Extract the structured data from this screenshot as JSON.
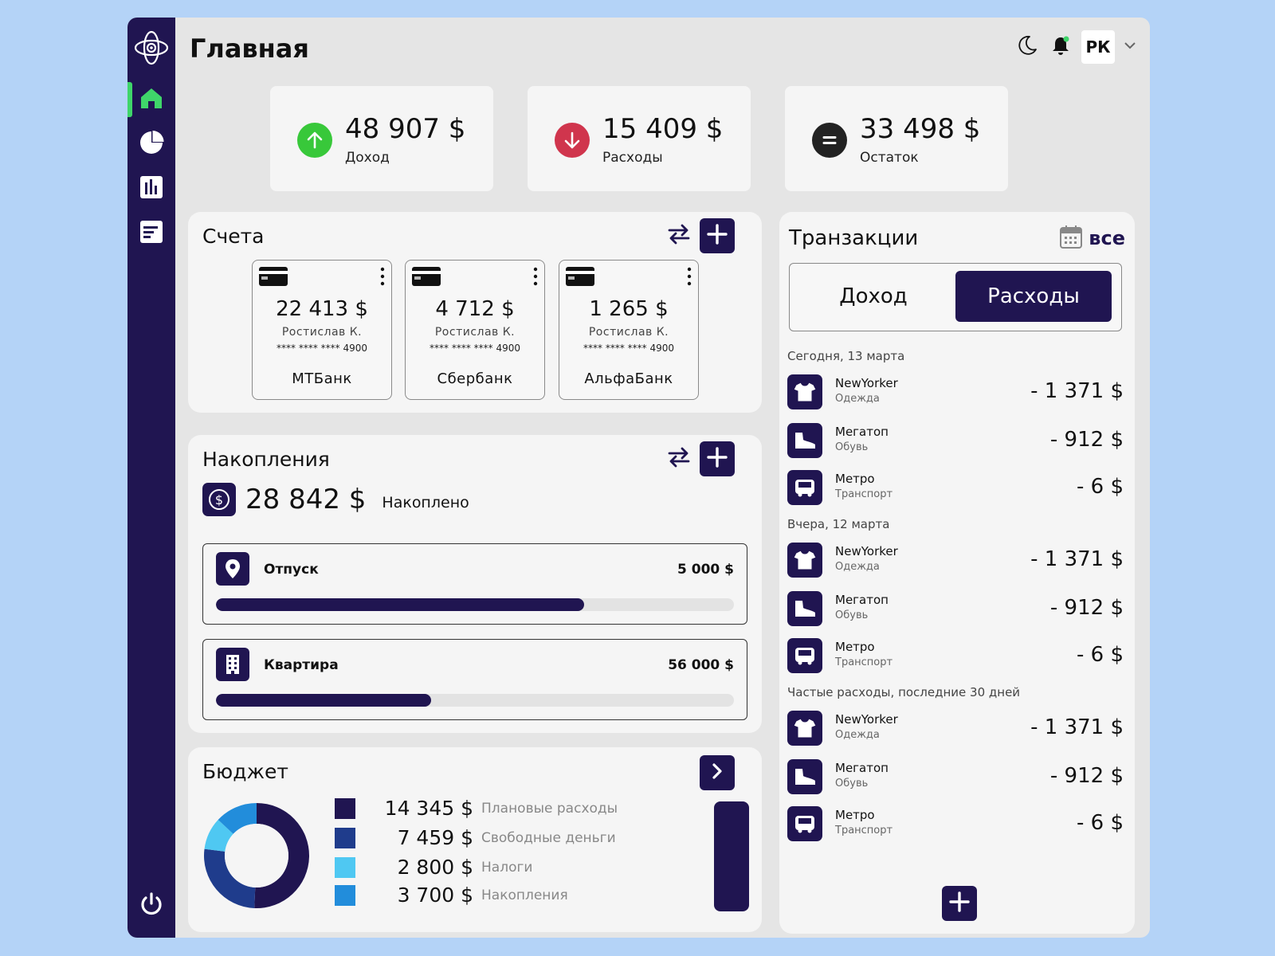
{
  "header": {
    "title": "Главная",
    "avatar_initials": "РК"
  },
  "stats": [
    {
      "value": "48 907 $",
      "label": "Доход",
      "color": "#38c83a"
    },
    {
      "value": "15 409 $",
      "label": "Расходы",
      "color": "#d0354d"
    },
    {
      "value": "33 498 $",
      "label": "Остаток",
      "color": "#222222"
    }
  ],
  "accounts": {
    "title": "Счета",
    "items": [
      {
        "amount": "22 413 $",
        "owner": "Ростислав К.",
        "number": "**** **** **** 4900",
        "bank": "МТБанк"
      },
      {
        "amount": "4 712 $",
        "owner": "Ростислав К.",
        "number": "**** **** **** 4900",
        "bank": "Сбербанк"
      },
      {
        "amount": "1 265 $",
        "owner": "Ростислав К.",
        "number": "**** **** **** 4900",
        "bank": "АльфаБанк"
      }
    ]
  },
  "savings": {
    "title": "Накопления",
    "total": "28 842 $",
    "total_label": "Накоплено",
    "goals": [
      {
        "name": "Отпуск",
        "target": "5 000 $",
        "progress": 0.71
      },
      {
        "name": "Квартира",
        "target": "56 000 $",
        "progress": 0.415
      }
    ]
  },
  "budget": {
    "title": "Бюджет",
    "items": [
      {
        "value": "14 345 $",
        "label": "Плановые расходы",
        "color": "#201551",
        "amount": 14345
      },
      {
        "value": "7 459 $",
        "label": "Свободные деньги",
        "color": "#1f3c8c",
        "amount": 7459
      },
      {
        "value": "2 800 $",
        "label": "Налоги",
        "color": "#4fc8f2",
        "amount": 2800
      },
      {
        "value": "3 700 $",
        "label": "Накопления",
        "color": "#228ddb",
        "amount": 3700
      }
    ]
  },
  "transactions": {
    "title": "Транзакции",
    "filter_label": "все",
    "tab_income": "Доход",
    "tab_expenses": "Расходы",
    "sections": [
      {
        "label": "Сегодня, 13 марта",
        "items": [
          {
            "name": "NewYorker",
            "category": "Одежда",
            "amount": "- 1 371 $",
            "icon": "tshirt-icon"
          },
          {
            "name": "Мегатоп",
            "category": "Обувь",
            "amount": "- 912 $",
            "icon": "shoe-icon"
          },
          {
            "name": "Метро",
            "category": "Транспорт",
            "amount": "- 6 $",
            "icon": "bus-icon"
          }
        ]
      },
      {
        "label": "Вчера, 12 марта",
        "items": [
          {
            "name": "NewYorker",
            "category": "Одежда",
            "amount": "- 1 371 $",
            "icon": "tshirt-icon"
          },
          {
            "name": "Мегатоп",
            "category": "Обувь",
            "amount": "- 912 $",
            "icon": "shoe-icon"
          },
          {
            "name": "Метро",
            "category": "Транспорт",
            "amount": "- 6 $",
            "icon": "bus-icon"
          }
        ]
      },
      {
        "label": "Частые расходы, последние 30 дней",
        "items": [
          {
            "name": "NewYorker",
            "category": "Одежда",
            "amount": "- 1 371 $",
            "icon": "tshirt-icon"
          },
          {
            "name": "Мегатоп",
            "category": "Обувь",
            "amount": "- 912 $",
            "icon": "shoe-icon"
          },
          {
            "name": "Метро",
            "category": "Транспорт",
            "amount": "- 6 $",
            "icon": "bus-icon"
          }
        ]
      }
    ]
  },
  "colors": {
    "brand": "#201551",
    "active": "#3fd56a",
    "panel": "#f5f5f5",
    "background": "#b4d3f7"
  }
}
